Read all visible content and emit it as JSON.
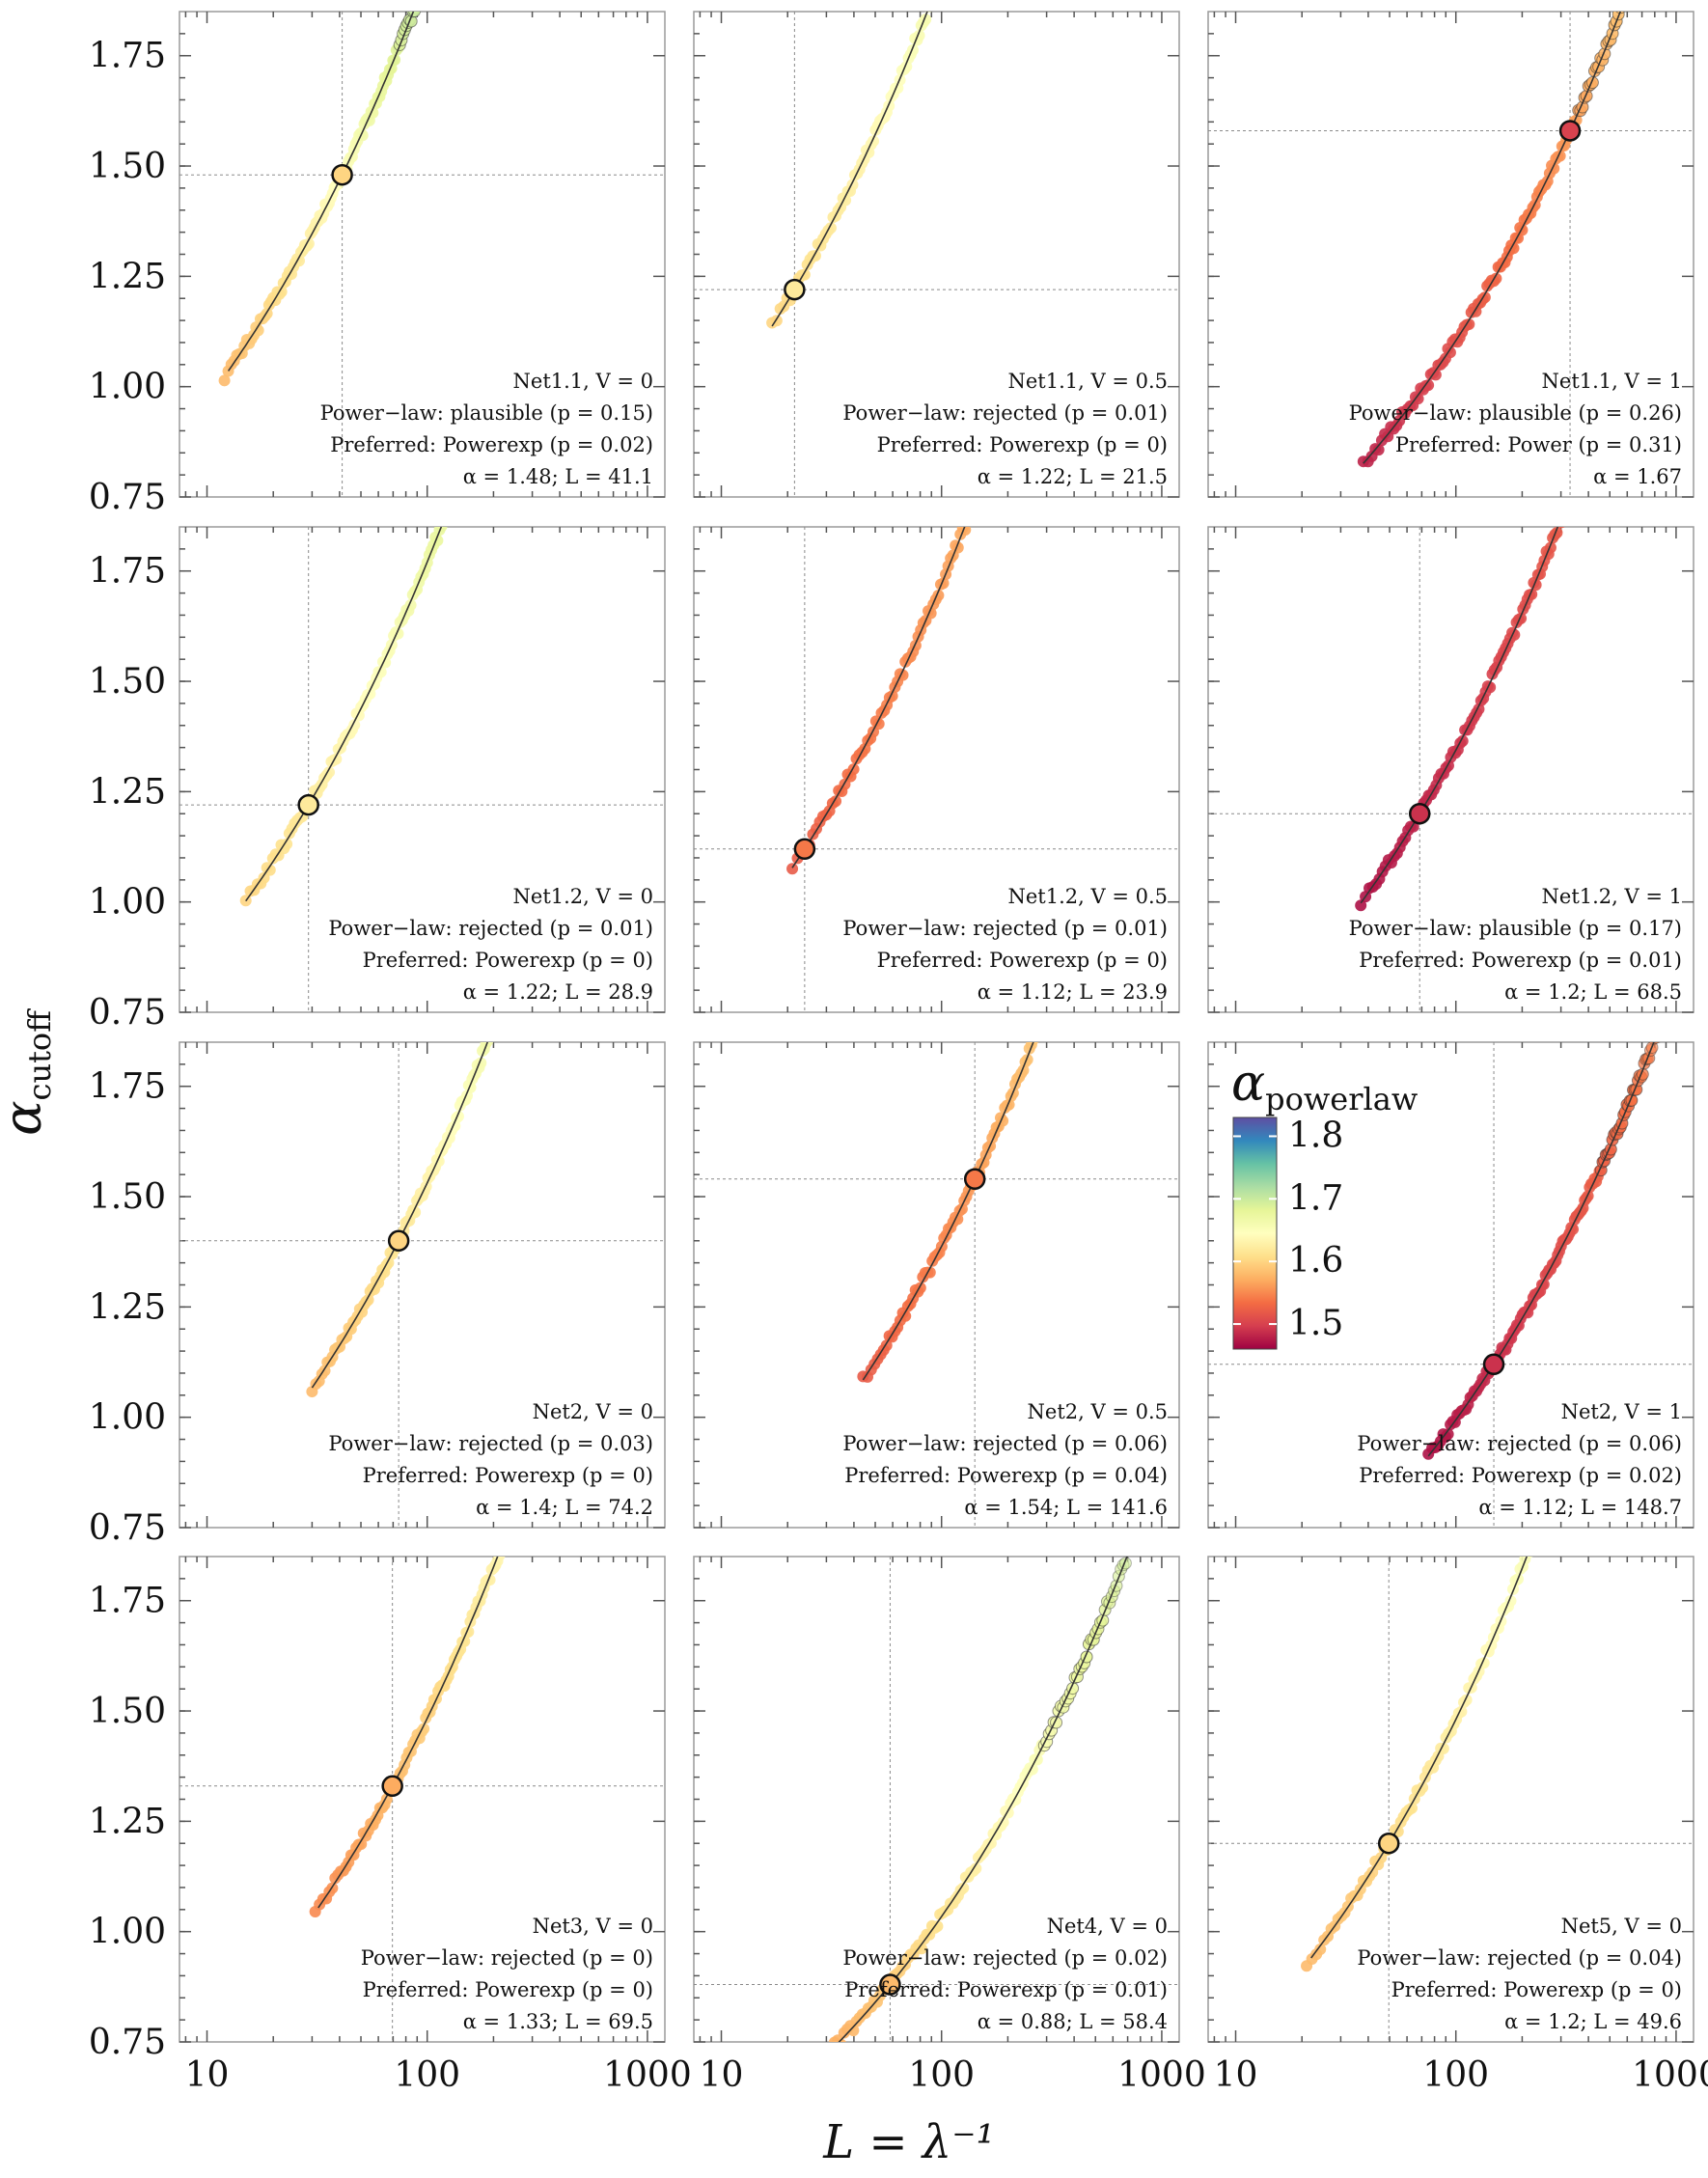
{
  "chart_data": {
    "type": "scatter",
    "layout": {
      "rows": 4,
      "cols": 3
    },
    "x_label": "L = λ⁻¹",
    "y_label": "α",
    "y_label_subscript": "cutoff",
    "x_scale": "log",
    "x_range": [
      7.5,
      1200
    ],
    "y_range": [
      0.75,
      1.85
    ],
    "x_ticks": [
      10,
      100,
      1000
    ],
    "x_tick_labels": [
      "10",
      "100",
      "1000"
    ],
    "y_ticks": [
      0.75,
      1.0,
      1.25,
      1.5,
      1.75
    ],
    "y_tick_labels": [
      "0.75",
      "1.00",
      "1.25",
      "1.50",
      "1.75"
    ],
    "colorbar": {
      "label": "α",
      "label_subscript": "powerlaw",
      "range": [
        1.46,
        1.83
      ],
      "ticks": [
        1.8,
        1.7,
        1.6,
        1.5
      ],
      "tick_labels": [
        "1.8",
        "1.7",
        "1.6",
        "1.5"
      ],
      "colormap": [
        "#9e0142",
        "#d53e4f",
        "#f46d43",
        "#fdae61",
        "#fee08b",
        "#ffffbf",
        "#e6f598",
        "#abdda4",
        "#66c2a5",
        "#3288bd",
        "#5e4fa2"
      ]
    },
    "panels": [
      {
        "lines": [
          "Net1.1, V = 0",
          "Power−law: plausible (p = 0.15)",
          "Preferred: Powerexp (p = 0.02)",
          "α = 1.48; L = 41.1"
        ],
        "alpha": 1.48,
        "L": 41.1,
        "sample_range": [
          12,
          200
        ],
        "cmin": 1.58,
        "cmax": 1.76,
        "fit_range": [
          12.5,
          220
        ]
      },
      {
        "lines": [
          "Net1.1, V = 0.5",
          "Power−law: rejected (p = 0.01)",
          "Preferred: Powerexp (p = 0)",
          "α = 1.22; L = 21.5"
        ],
        "alpha": 1.22,
        "L": 21.5,
        "sample_range": [
          17,
          500
        ],
        "cmin": 1.6,
        "cmax": 1.74,
        "fit_range": [
          17,
          500
        ]
      },
      {
        "lines": [
          "Net1.1, V = 1",
          "Power−law: plausible (p = 0.26)",
          "Preferred: Power (p = 0.31)"
        ],
        "alpha_line": "α = 1.67",
        "alpha": 1.58,
        "L": 330,
        "sample_range": [
          38,
          1200
        ],
        "cmin": 1.48,
        "cmax": 1.62,
        "fit_range": [
          38,
          1200
        ]
      },
      {
        "lines": [
          "Net1.2, V = 0",
          "Power−law: rejected (p = 0.01)",
          "Preferred: Powerexp (p = 0)",
          "α = 1.22; L = 28.9"
        ],
        "alpha": 1.22,
        "L": 28.9,
        "sample_range": [
          15,
          450
        ],
        "cmin": 1.6,
        "cmax": 1.74,
        "fit_range": [
          15,
          450
        ]
      },
      {
        "lines": [
          "Net1.2, V = 0.5",
          "Power−law: rejected (p = 0.01)",
          "Preferred: Powerexp (p = 0)",
          "α = 1.12; L = 23.9"
        ],
        "alpha": 1.12,
        "L": 23.9,
        "sample_range": [
          21,
          1000
        ],
        "cmin": 1.52,
        "cmax": 1.64,
        "fit_range": [
          21,
          1000
        ]
      },
      {
        "lines": [
          "Net1.2, V = 1",
          "Power−law: plausible (p = 0.17)",
          "Preferred: Powerexp (p = 0.01)",
          "α = 1.2; L = 68.5"
        ],
        "alpha": 1.2,
        "L": 68.5,
        "sample_range": [
          37,
          1200
        ],
        "cmin": 1.47,
        "cmax": 1.56,
        "fit_range": [
          37,
          1200
        ]
      },
      {
        "lines": [
          "Net2, V = 0",
          "Power−law: rejected (p = 0.03)",
          "Preferred: Powerexp (p = 0)",
          "α = 1.4; L = 74.2"
        ],
        "alpha": 1.4,
        "L": 74.2,
        "sample_range": [
          30,
          530
        ],
        "cmin": 1.58,
        "cmax": 1.72,
        "fit_range": [
          30,
          500
        ]
      },
      {
        "lines": [
          "Net2, V = 0.5",
          "Power−law: rejected (p = 0.06)",
          "Preferred: Powerexp (p = 0.04)",
          "α = 1.54; L = 141.6"
        ],
        "alpha": 1.54,
        "L": 141.6,
        "sample_range": [
          44,
          1200
        ],
        "cmin": 1.52,
        "cmax": 1.66,
        "fit_range": [
          44,
          1200
        ]
      },
      {
        "lines": [
          "Net2, V = 1",
          "Power−law: rejected (p = 0.06)",
          "Preferred: Powerexp (p = 0.02)",
          "α = 1.12; L = 148.7"
        ],
        "alpha": 1.12,
        "L": 148.7,
        "sample_range": [
          75,
          1200
        ],
        "cmin": 1.47,
        "cmax": 1.56,
        "fit_range": [
          75,
          1200
        ]
      },
      {
        "lines": [
          "Net3, V = 0",
          "Power−law: rejected (p = 0)",
          "Preferred: Powerexp (p = 0)",
          "α = 1.33; L = 69.5"
        ],
        "alpha": 1.33,
        "L": 69.5,
        "sample_range": [
          31,
          760
        ],
        "cmin": 1.55,
        "cmax": 1.7,
        "fit_range": [
          32,
          720
        ]
      },
      {
        "lines": [
          "Net4, V = 0",
          "Power−law: rejected (p = 0.02)",
          "Preferred: Powerexp (p = 0.01)",
          "α = 0.88; L = 58.4"
        ],
        "alpha": 0.88,
        "L": 58.4,
        "sample_range": [
          21,
          1200
        ],
        "cmin": 1.56,
        "cmax": 1.72,
        "fit_range": [
          22,
          1100
        ]
      },
      {
        "lines": [
          "Net5, V = 0",
          "Power−law: rejected (p = 0.04)",
          "Preferred: Powerexp (p = 0)",
          "α = 1.2; L = 49.6"
        ],
        "alpha": 1.2,
        "L": 49.6,
        "sample_range": [
          21,
          1100
        ],
        "cmin": 1.58,
        "cmax": 1.72,
        "fit_range": [
          22,
          1050
        ]
      }
    ]
  }
}
